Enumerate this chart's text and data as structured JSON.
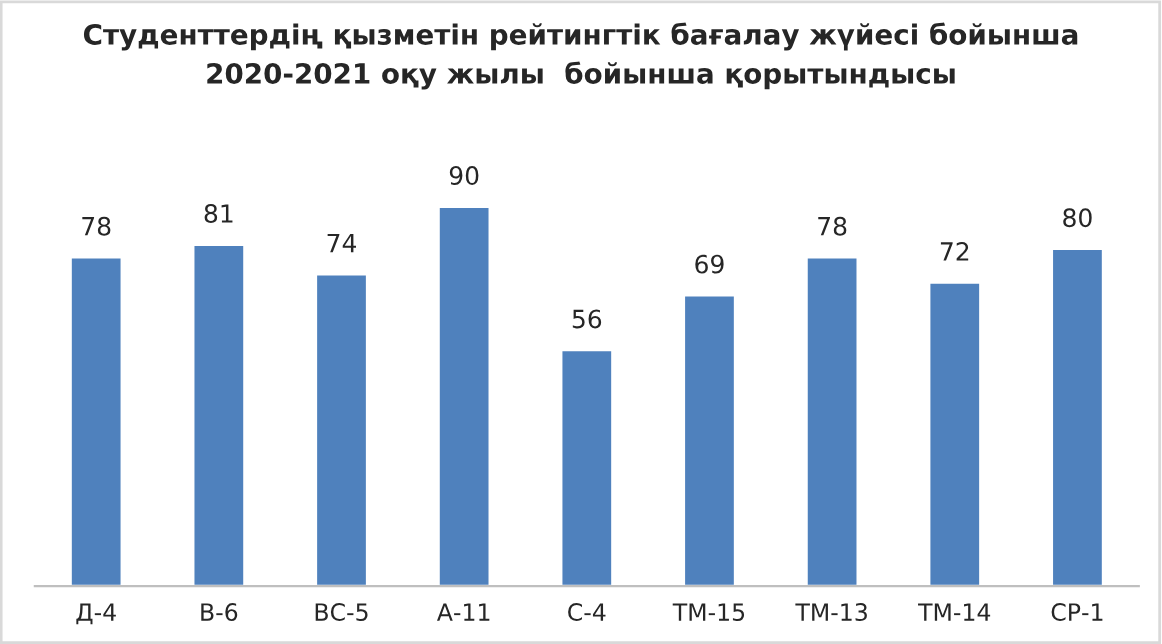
{
  "chart_data": {
    "type": "bar",
    "title": "Студенттердің қызметін рейтингтік бағалау жүйесі бойынша\n2020-2021 оқу жылы  бойынша қорытындысы",
    "categories": [
      "Д-4",
      "В-6",
      "ВС-5",
      "А-11",
      "С-4",
      "ТМ-15",
      "ТМ-13",
      "ТМ-14",
      "СР-1"
    ],
    "values": [
      78,
      81,
      74,
      90,
      56,
      69,
      78,
      72,
      80
    ],
    "color": "#4f81bd",
    "data_labels": true,
    "grid": false,
    "legend": false
  }
}
